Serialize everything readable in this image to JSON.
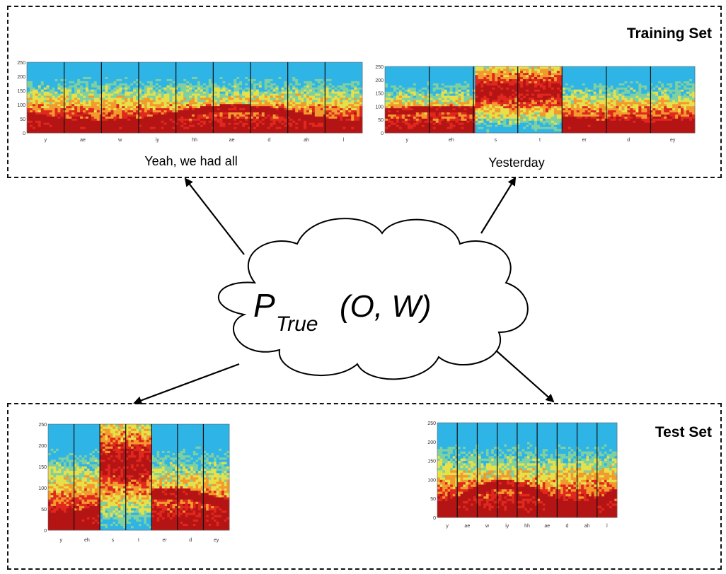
{
  "training": {
    "title": "Training Set",
    "examples": [
      {
        "caption": "Yeah, we had all",
        "phones": [
          "y",
          "ae",
          "w",
          "iy",
          "hh",
          "ae",
          "d",
          "ah",
          "l"
        ],
        "y_ticks": [
          "0",
          "50",
          "100",
          "150",
          "200",
          "250"
        ]
      },
      {
        "caption": "Yesterday",
        "phones": [
          "y",
          "eh",
          "s",
          "t",
          "er",
          "d",
          "ey"
        ],
        "y_ticks": [
          "0",
          "50",
          "100",
          "150",
          "200",
          "250"
        ]
      }
    ]
  },
  "test": {
    "title": "Test Set",
    "examples": [
      {
        "phones": [
          "y",
          "eh",
          "s",
          "t",
          "er",
          "d",
          "ey"
        ],
        "y_ticks": [
          "0",
          "50",
          "100",
          "150",
          "200",
          "250"
        ]
      },
      {
        "phones": [
          "y",
          "ae",
          "w",
          "iy",
          "hh",
          "ae",
          "d",
          "ah",
          "l"
        ],
        "y_ticks": [
          "0",
          "50",
          "100",
          "150",
          "200",
          "250"
        ]
      }
    ]
  },
  "model": {
    "label_main": "P",
    "label_sub": "True",
    "label_args": "(O, W)"
  },
  "colors": {
    "low": "#2fb4e6",
    "mid_low": "#7fd0a0",
    "mid": "#e6e04a",
    "mid_high": "#f39a2e",
    "high": "#e0281e",
    "peak": "#b51414"
  }
}
